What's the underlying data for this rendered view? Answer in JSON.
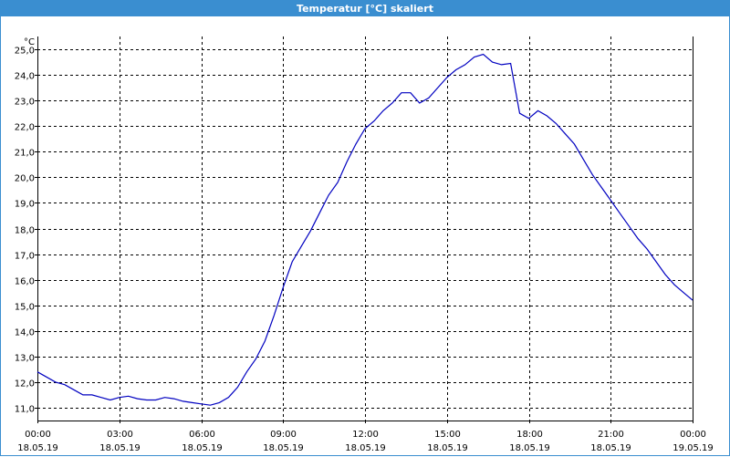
{
  "window": {
    "title": "Temperatur [°C] skaliert"
  },
  "chart_data": {
    "type": "line",
    "title": "Temperatur [°C] skaliert",
    "y_unit": "°C",
    "xlabel": "",
    "ylabel": "",
    "xlim": [
      "18.05.19 00:00",
      "19.05.19 00:00"
    ],
    "ylim": [
      10.5,
      25.5
    ],
    "grid": true,
    "y_ticks": [
      "11,0",
      "12,0",
      "13,0",
      "14,0",
      "15,0",
      "16,0",
      "17,0",
      "18,0",
      "19,0",
      "20,0",
      "21,0",
      "22,0",
      "23,0",
      "24,0",
      "25,0"
    ],
    "x_ticks": [
      {
        "time": "00:00",
        "date": "18.05.19"
      },
      {
        "time": "03:00",
        "date": "18.05.19"
      },
      {
        "time": "06:00",
        "date": "18.05.19"
      },
      {
        "time": "09:00",
        "date": "18.05.19"
      },
      {
        "time": "12:00",
        "date": "18.05.19"
      },
      {
        "time": "15:00",
        "date": "18.05.19"
      },
      {
        "time": "18:00",
        "date": "18.05.19"
      },
      {
        "time": "21:00",
        "date": "18.05.19"
      },
      {
        "time": "00:00",
        "date": "19.05.19"
      }
    ],
    "series": [
      {
        "color": "#0000c0",
        "x": [
          "00:00",
          "00:20",
          "00:40",
          "01:00",
          "01:20",
          "01:40",
          "02:00",
          "02:20",
          "02:40",
          "03:00",
          "03:20",
          "03:40",
          "04:00",
          "04:20",
          "04:40",
          "05:00",
          "05:20",
          "05:40",
          "06:00",
          "06:20",
          "06:40",
          "07:00",
          "07:20",
          "07:40",
          "08:00",
          "08:20",
          "08:40",
          "09:00",
          "09:20",
          "09:40",
          "10:00",
          "10:20",
          "10:40",
          "11:00",
          "11:20",
          "11:40",
          "12:00",
          "12:20",
          "12:40",
          "13:00",
          "13:20",
          "13:40",
          "14:00",
          "14:20",
          "14:40",
          "15:00",
          "15:20",
          "15:40",
          "16:00",
          "16:20",
          "16:40",
          "17:00",
          "17:20",
          "17:40",
          "18:00",
          "18:20",
          "18:40",
          "19:00",
          "19:20",
          "19:40",
          "20:00",
          "20:20",
          "20:40",
          "21:00",
          "21:20",
          "21:40",
          "22:00",
          "22:20",
          "22:40",
          "23:00",
          "23:20",
          "23:40",
          "24:00"
        ],
        "y": [
          12.4,
          12.2,
          12.0,
          11.9,
          11.7,
          11.5,
          11.5,
          11.4,
          11.3,
          11.4,
          11.45,
          11.35,
          11.3,
          11.3,
          11.4,
          11.35,
          11.25,
          11.2,
          11.15,
          11.1,
          11.2,
          11.4,
          11.8,
          12.4,
          12.9,
          13.6,
          14.6,
          15.7,
          16.7,
          17.3,
          17.9,
          18.6,
          19.3,
          19.8,
          20.6,
          21.3,
          21.9,
          22.2,
          22.6,
          22.9,
          23.3,
          23.3,
          22.9,
          23.1,
          23.5,
          23.9,
          24.2,
          24.4,
          24.7,
          24.8,
          24.5,
          24.4,
          24.45,
          22.5,
          22.3,
          22.6,
          22.4,
          22.1,
          21.7,
          21.3,
          20.7,
          20.1,
          19.6,
          19.1,
          18.6,
          18.1,
          17.6,
          17.2,
          16.7,
          16.2,
          15.8,
          15.5,
          15.2
        ]
      }
    ]
  }
}
